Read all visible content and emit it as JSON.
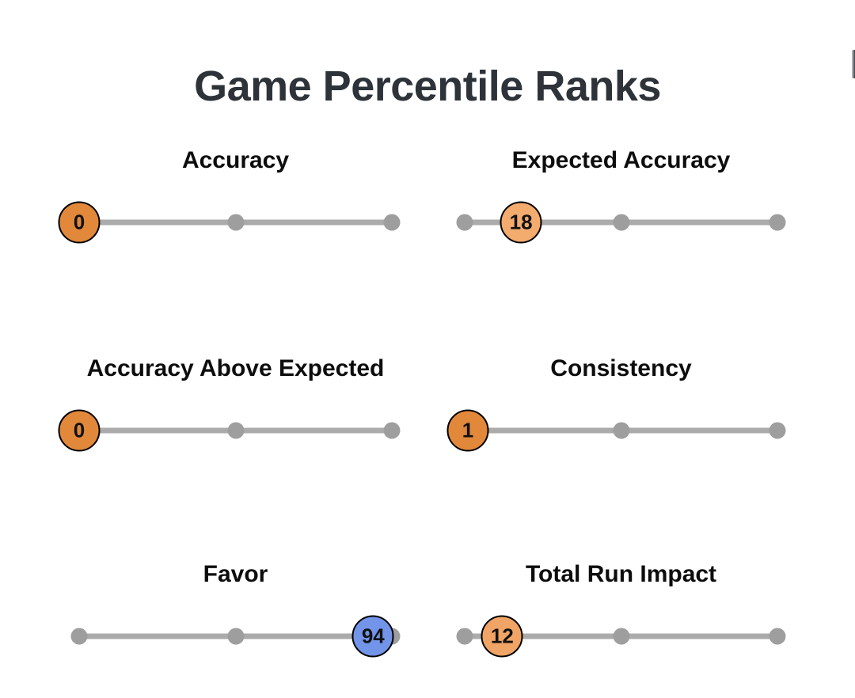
{
  "title": "Game Percentile Ranks",
  "stats": [
    {
      "label": "Accuracy",
      "value": 0,
      "fill": "#e1883b"
    },
    {
      "label": "Expected Accuracy",
      "value": 18,
      "fill": "#f3ab6e"
    },
    {
      "label": "Accuracy Above Expected",
      "value": 0,
      "fill": "#e1883b"
    },
    {
      "label": "Consistency",
      "value": 1,
      "fill": "#e1883b"
    },
    {
      "label": "Favor",
      "value": 94,
      "fill": "#7295e9"
    },
    {
      "label": "Total Run Impact",
      "value": 12,
      "fill": "#f0a465"
    }
  ],
  "colors": {
    "title_text": "#2d3338",
    "heading_text": "#0d0d0d",
    "track": "#ababab",
    "dot": "#9e9e9e",
    "bubble_border": "#000000",
    "bubble_text": "#111111"
  },
  "chart_data": {
    "type": "bar",
    "title": "Game Percentile Ranks",
    "categories": [
      "Accuracy",
      "Expected Accuracy",
      "Accuracy Above Expected",
      "Consistency",
      "Favor",
      "Total Run Impact"
    ],
    "values": [
      0,
      18,
      0,
      1,
      94,
      12
    ],
    "value_range": [
      0,
      100
    ],
    "layout": "2-column grid of horizontal percentile sliders with markers at 0, 50 and 100",
    "marker_color_rule": "low percentile = orange, high percentile = blue"
  }
}
